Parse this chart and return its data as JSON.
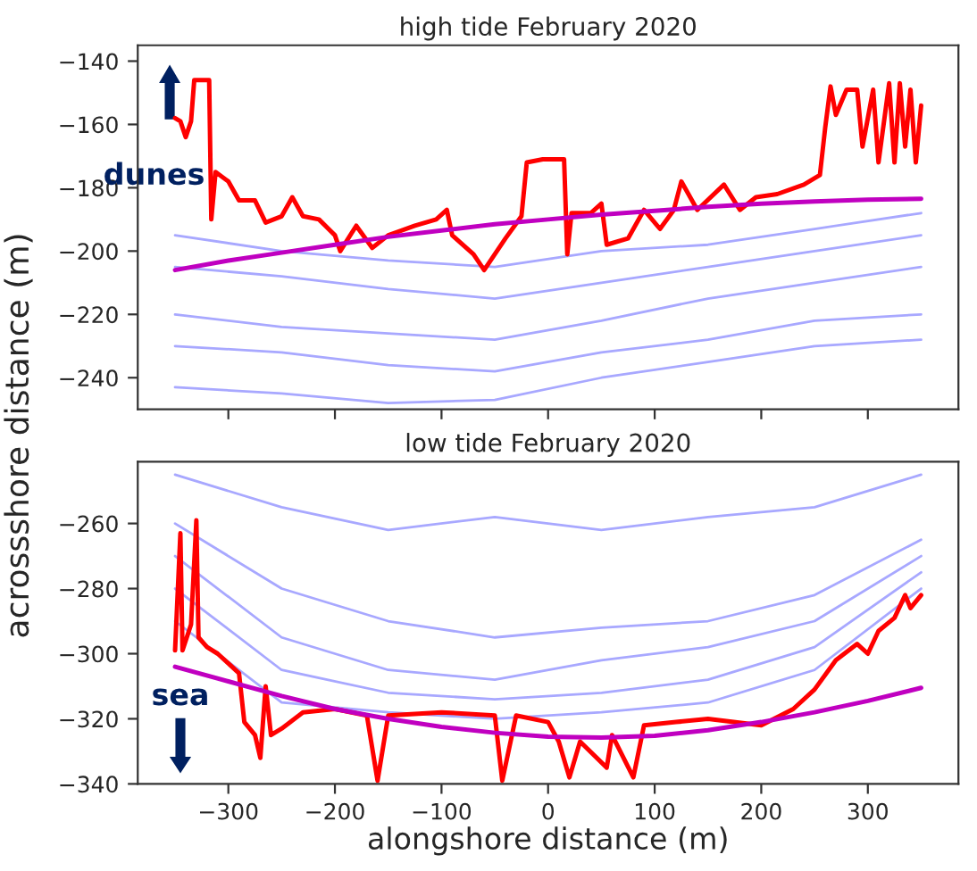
{
  "chart_data": [
    {
      "type": "line",
      "title": "high tide February 2020",
      "ylabel": "acrossshore distance (m)",
      "xlim": [
        -385,
        385
      ],
      "xticks": [
        -300,
        -200,
        -100,
        0,
        100,
        200,
        300
      ],
      "ylim": [
        -250,
        -135
      ],
      "yticks": [
        -240,
        -220,
        -200,
        -180,
        -160,
        -140
      ],
      "tick_labels": "y",
      "annotations": [
        "dunes"
      ],
      "series": [
        {
          "color": "#a8a8ff",
          "x": [
            -350,
            -250,
            -150,
            -50,
            50,
            150,
            250,
            350
          ],
          "values": [
            -195,
            -200,
            -203,
            -205,
            -200,
            -198,
            -193,
            -188
          ]
        },
        {
          "color": "#a8a8ff",
          "x": [
            -350,
            -250,
            -150,
            -50,
            50,
            150,
            250,
            350
          ],
          "values": [
            -205,
            -208,
            -212,
            -215,
            -210,
            -205,
            -200,
            -195
          ]
        },
        {
          "color": "#a8a8ff",
          "x": [
            -350,
            -250,
            -150,
            -50,
            50,
            150,
            250,
            350
          ],
          "values": [
            -220,
            -224,
            -226,
            -228,
            -222,
            -215,
            -210,
            -205
          ]
        },
        {
          "color": "#a8a8ff",
          "x": [
            -350,
            -250,
            -150,
            -50,
            50,
            150,
            250,
            350
          ],
          "values": [
            -230,
            -232,
            -236,
            -238,
            -232,
            -228,
            -222,
            -220
          ]
        },
        {
          "color": "#a8a8ff",
          "x": [
            -350,
            -250,
            -150,
            -50,
            50,
            150,
            250,
            350
          ],
          "values": [
            -243,
            -245,
            -248,
            -247,
            -240,
            -235,
            -230,
            -228
          ]
        },
        {
          "color": "#ff0000",
          "x": [
            -350,
            -345,
            -340,
            -335,
            -332,
            -320,
            -318,
            -316,
            -312,
            -300,
            -290,
            -275,
            -265,
            -250,
            -240,
            -230,
            -215,
            -200,
            -195,
            -180,
            -165,
            -150,
            -125,
            -105,
            -95,
            -90,
            -70,
            -60,
            -50,
            -40,
            -25,
            -20,
            -5,
            10,
            15,
            18,
            22,
            40,
            50,
            55,
            75,
            90,
            105,
            118,
            125,
            140,
            165,
            180,
            195,
            215,
            240,
            255,
            260,
            265,
            270,
            280,
            290,
            295,
            305,
            310,
            320,
            325,
            330,
            335,
            340,
            345,
            350
          ],
          "values": [
            -158,
            -159,
            -164,
            -159,
            -146,
            -146,
            -146,
            -190,
            -175,
            -178,
            -184,
            -184,
            -191,
            -189,
            -183,
            -189,
            -190,
            -195,
            -200,
            -192,
            -199,
            -195,
            -192,
            -190,
            -187,
            -195,
            -201,
            -206,
            -201,
            -196,
            -189,
            -172,
            -171,
            -171,
            -171,
            -201,
            -188,
            -188,
            -185,
            -198,
            -196,
            -187,
            -193,
            -187,
            -178,
            -187,
            -179,
            -187,
            -183,
            -182,
            -179,
            -176,
            -161,
            -148,
            -157,
            -149,
            -149,
            -167,
            -149,
            -172,
            -147,
            -172,
            -147,
            -167,
            -149,
            -172,
            -154
          ]
        },
        {
          "color": "#c000c0",
          "x": [
            -350,
            -300,
            -250,
            -200,
            -150,
            -100,
            -50,
            0,
            50,
            100,
            150,
            200,
            250,
            300,
            350
          ],
          "values": [
            -206,
            -203,
            -200.5,
            -198,
            -195.5,
            -193.5,
            -191.5,
            -190,
            -188.5,
            -187.3,
            -186,
            -185,
            -184.3,
            -183.8,
            -183.5
          ]
        }
      ]
    },
    {
      "type": "line",
      "title": "low tide February 2020",
      "xlabel": "alongshore distance (m)",
      "xlim": [
        -385,
        385
      ],
      "xticks": [
        -300,
        -200,
        -100,
        0,
        100,
        200,
        300
      ],
      "ylim": [
        -340,
        -241
      ],
      "yticks": [
        -340,
        -320,
        -300,
        -280,
        -260
      ],
      "annotations": [
        "sea"
      ],
      "series": [
        {
          "color": "#a8a8ff",
          "x": [
            -350,
            -250,
            -150,
            -50,
            50,
            150,
            250,
            350
          ],
          "values": [
            -245,
            -255,
            -262,
            -258,
            -262,
            -258,
            -255,
            -245
          ]
        },
        {
          "color": "#a8a8ff",
          "x": [
            -350,
            -250,
            -150,
            -50,
            50,
            150,
            250,
            350
          ],
          "values": [
            -260,
            -280,
            -290,
            -295,
            -292,
            -290,
            -282,
            -265
          ]
        },
        {
          "color": "#a8a8ff",
          "x": [
            -350,
            -250,
            -150,
            -50,
            50,
            150,
            250,
            350
          ],
          "values": [
            -270,
            -295,
            -305,
            -308,
            -302,
            -298,
            -290,
            -270
          ]
        },
        {
          "color": "#a8a8ff",
          "x": [
            -350,
            -250,
            -150,
            -50,
            50,
            150,
            250,
            350
          ],
          "values": [
            -280,
            -305,
            -312,
            -314,
            -312,
            -308,
            -298,
            -275
          ]
        },
        {
          "color": "#a8a8ff",
          "x": [
            -350,
            -250,
            -150,
            -50,
            50,
            150,
            250,
            350
          ],
          "values": [
            -290,
            -315,
            -318,
            -320,
            -318,
            -315,
            -305,
            -280
          ]
        },
        {
          "color": "#ff0000",
          "x": [
            -350,
            -345,
            -343,
            -335,
            -330,
            -328,
            -320,
            -310,
            -300,
            -290,
            -285,
            -275,
            -270,
            -265,
            -260,
            -250,
            -230,
            -200,
            -170,
            -160,
            -150,
            -100,
            -50,
            -43,
            -30,
            0,
            10,
            20,
            30,
            55,
            60,
            80,
            90,
            120,
            150,
            200,
            230,
            250,
            270,
            290,
            300,
            310,
            325,
            335,
            340,
            350
          ],
          "values": [
            -299,
            -263,
            -299,
            -291,
            -259,
            -295,
            -298,
            -300,
            -303,
            -306,
            -321,
            -325,
            -332,
            -310,
            -325,
            -323,
            -318,
            -317,
            -319,
            -339,
            -319,
            -318,
            -319,
            -339,
            -319,
            -321,
            -327,
            -338,
            -327,
            -335,
            -325,
            -338,
            -322,
            -321,
            -320,
            -322,
            -317,
            -311,
            -302,
            -297,
            -300,
            -293,
            -289,
            -282,
            -286,
            -282
          ]
        },
        {
          "color": "#c000c0",
          "x": [
            -350,
            -300,
            -250,
            -200,
            -150,
            -100,
            -50,
            0,
            50,
            100,
            150,
            200,
            250,
            300,
            350
          ],
          "values": [
            -304,
            -308.5,
            -313,
            -317,
            -320,
            -322.5,
            -324.3,
            -325.5,
            -325.8,
            -325.2,
            -323.5,
            -321,
            -318,
            -314.5,
            -310.5
          ]
        }
      ]
    }
  ]
}
